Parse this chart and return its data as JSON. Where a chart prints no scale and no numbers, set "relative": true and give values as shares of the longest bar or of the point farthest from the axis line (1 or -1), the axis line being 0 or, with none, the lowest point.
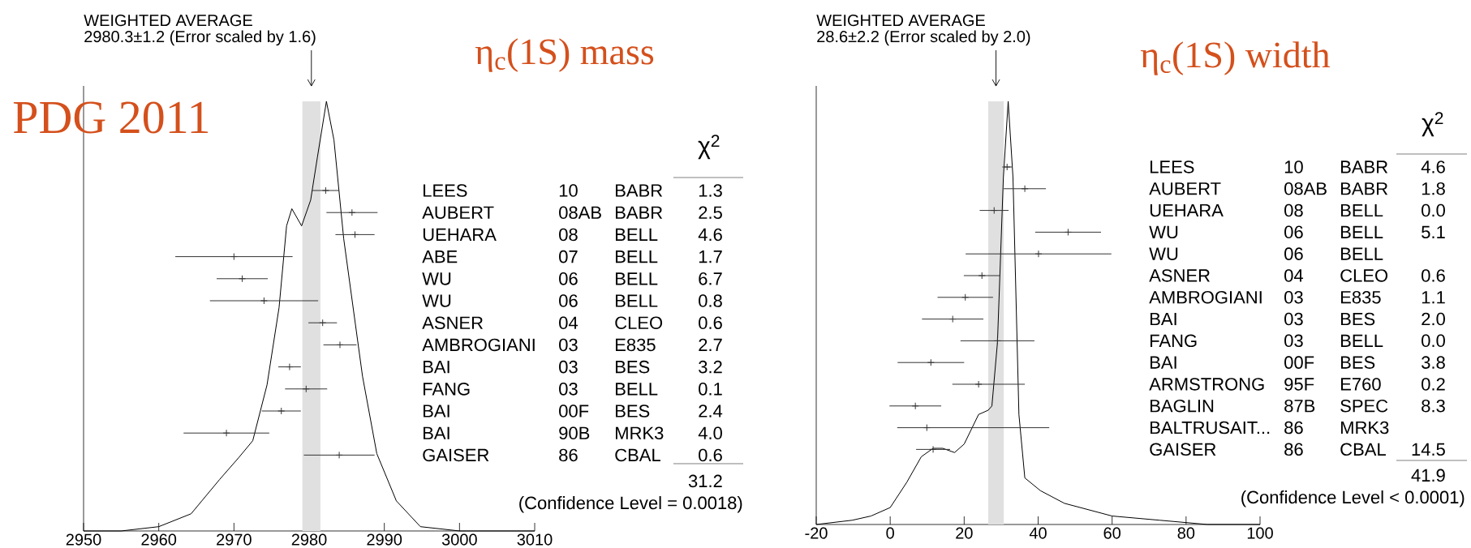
{
  "chart_data": [
    {
      "type": "line",
      "relative": true,
      "title": "WEIGHTED AVERAGE",
      "subtitle": "2980.3±1.2 (Error scaled by 1.6)",
      "series": [
        {
          "color": "#000000",
          "x": [
            2950,
            2955,
            2960,
            2964.3,
            2968.1,
            2970.6,
            2972.5,
            2974.4,
            2976.0,
            2977.0,
            2977.7,
            2979.0,
            2980.2,
            2981.1,
            2982.3,
            2983.3,
            2984.6,
            2987.1,
            2989.0,
            2991.6,
            2994.8,
            3000,
            3010
          ],
          "values": [
            0,
            0,
            0.01,
            0.04,
            0.12,
            0.17,
            0.21,
            0.34,
            0.52,
            0.71,
            0.75,
            0.71,
            0.77,
            0.87,
            1.0,
            0.91,
            0.68,
            0.36,
            0.18,
            0.07,
            0.01,
            0,
            0
          ]
        }
      ],
      "xlim": [
        2950,
        3010
      ],
      "xticks": [
        2950,
        2960,
        2970,
        2980,
        2990,
        3000,
        3010
      ],
      "bands": [
        {
          "axis": "x",
          "from": 2979.1,
          "to": 2981.5,
          "color": "#e0e0e0"
        }
      ],
      "annotations": [
        "η$_{c}$(1S) mass",
        "PDG 2011"
      ]
    },
    {
      "type": "scatter",
      "orientation": "horizontal",
      "marker": "cross",
      "tick_labels": false,
      "categories": [
        "LEES",
        "AUBERT",
        "UEHARA",
        "ABE",
        "WU",
        "WU",
        "ASNER",
        "AMBROGIANI",
        "BAI",
        "FANG",
        "BAI",
        "BAI",
        "GAISER"
      ],
      "series": [
        {
          "color": "#333333",
          "values": [
            2982.2,
            2985.7,
            2986.1,
            2970.0,
            2971.1,
            2974.0,
            2981.8,
            2984.1,
            2977.4,
            2979.6,
            2976.3,
            2969.0,
            2984.0
          ],
          "errors": [
            1.8,
            3.4,
            2.6,
            7.8,
            3.4,
            7.2,
            1.9,
            2.2,
            1.5,
            2.8,
            2.6,
            5.7,
            4.7
          ]
        }
      ],
      "xlim": [
        2950,
        3010
      ],
      "annotations": [
        "10",
        "BABR",
        "1.3",
        "08AB",
        "BABR",
        "2.5",
        "08",
        "BELL",
        "4.6",
        "07",
        "BELL",
        "1.7",
        "06",
        "BELL",
        "6.7",
        "06",
        "BELL",
        "0.8",
        "04",
        "CLEO",
        "0.6",
        "03",
        "E835",
        "2.7",
        "03",
        "BES",
        "3.2",
        "03",
        "BELL",
        "0.1",
        "00F",
        "BES",
        "2.4",
        "90B",
        "MRK3",
        "4.0",
        "86",
        "CBAL",
        "0.6",
        "χ$^{2}$",
        "31.2",
        "(Confidence Level = 0.0018)"
      ]
    },
    {
      "type": "line",
      "relative": true,
      "title": "WEIGHTED AVERAGE",
      "subtitle": "28.6±2.2 (Error scaled by 2.0)",
      "series": [
        {
          "color": "#000000",
          "x": [
            -20,
            -10.3,
            -5.2,
            0,
            4.5,
            8.4,
            11.6,
            14.2,
            17.4,
            20,
            23.9,
            26.5,
            27.5,
            29,
            30.6,
            31.9,
            33.2,
            34.8,
            36.4,
            40.6,
            47.1,
            60,
            72.9,
            85.8,
            100
          ],
          "values": [
            0,
            0.01,
            0.02,
            0.04,
            0.1,
            0.16,
            0.18,
            0.18,
            0.17,
            0.19,
            0.26,
            0.27,
            0.28,
            0.43,
            0.82,
            1.0,
            0.82,
            0.26,
            0.11,
            0.08,
            0.05,
            0.02,
            0.01,
            0,
            0
          ]
        }
      ],
      "xlim": [
        -20,
        100
      ],
      "xticks": [
        -20,
        0,
        20,
        40,
        60,
        80,
        100
      ],
      "bands": [
        {
          "axis": "x",
          "from": 26.5,
          "to": 30.7,
          "color": "#e0e0e0"
        }
      ],
      "annotations": [
        "η$_{c}$(1S) width"
      ]
    },
    {
      "type": "scatter",
      "orientation": "horizontal",
      "marker": "cross",
      "tick_labels": false,
      "categories": [
        "LEES",
        "AUBERT",
        "UEHARA",
        "WU",
        "WU",
        "ASNER",
        "AMBROGIANI",
        "BAI",
        "FANG",
        "BAI",
        "ARMSTRONG",
        "BAGLIN",
        "BALTRUSAIT...",
        "GAISER"
      ],
      "series": [
        {
          "color": "#333333",
          "values": [
            31.6,
            36.4,
            28.1,
            48.1,
            40.1,
            24.8,
            20.3,
            16.9,
            29.0,
            11.0,
            23.9,
            6.8,
            9.9,
            11.6
          ],
          "errors": [
            1.3,
            5.7,
            3.9,
            8.9,
            19.7,
            4.9,
            7.5,
            8.3,
            10.0,
            9.0,
            [
              16.8,
              36.4
            ],
            7.0,
            [
              1.9,
              43.0
            ],
            4.6
          ]
        }
      ],
      "xlim": [
        -20,
        100
      ],
      "annotations": [
        "10",
        "BABR",
        "4.6",
        "08AB",
        "BABR",
        "1.8",
        "08",
        "BELL",
        "0.0",
        "06",
        "BELL",
        "5.1",
        "06",
        "BELL",
        null,
        "04",
        "CLEO",
        "0.6",
        "03",
        "E835",
        "1.1",
        "03",
        "BES",
        "2.0",
        "03",
        "BELL",
        "0.0",
        "00F",
        "BES",
        "3.8",
        "95F",
        "E760",
        "0.2",
        "87B",
        "SPEC",
        "8.3",
        "86",
        "MRK3",
        null,
        "86",
        "CBAL",
        "14.5",
        "χ$^{2}$",
        "41.9",
        "(Confidence Level < 0.0001)"
      ]
    }
  ]
}
